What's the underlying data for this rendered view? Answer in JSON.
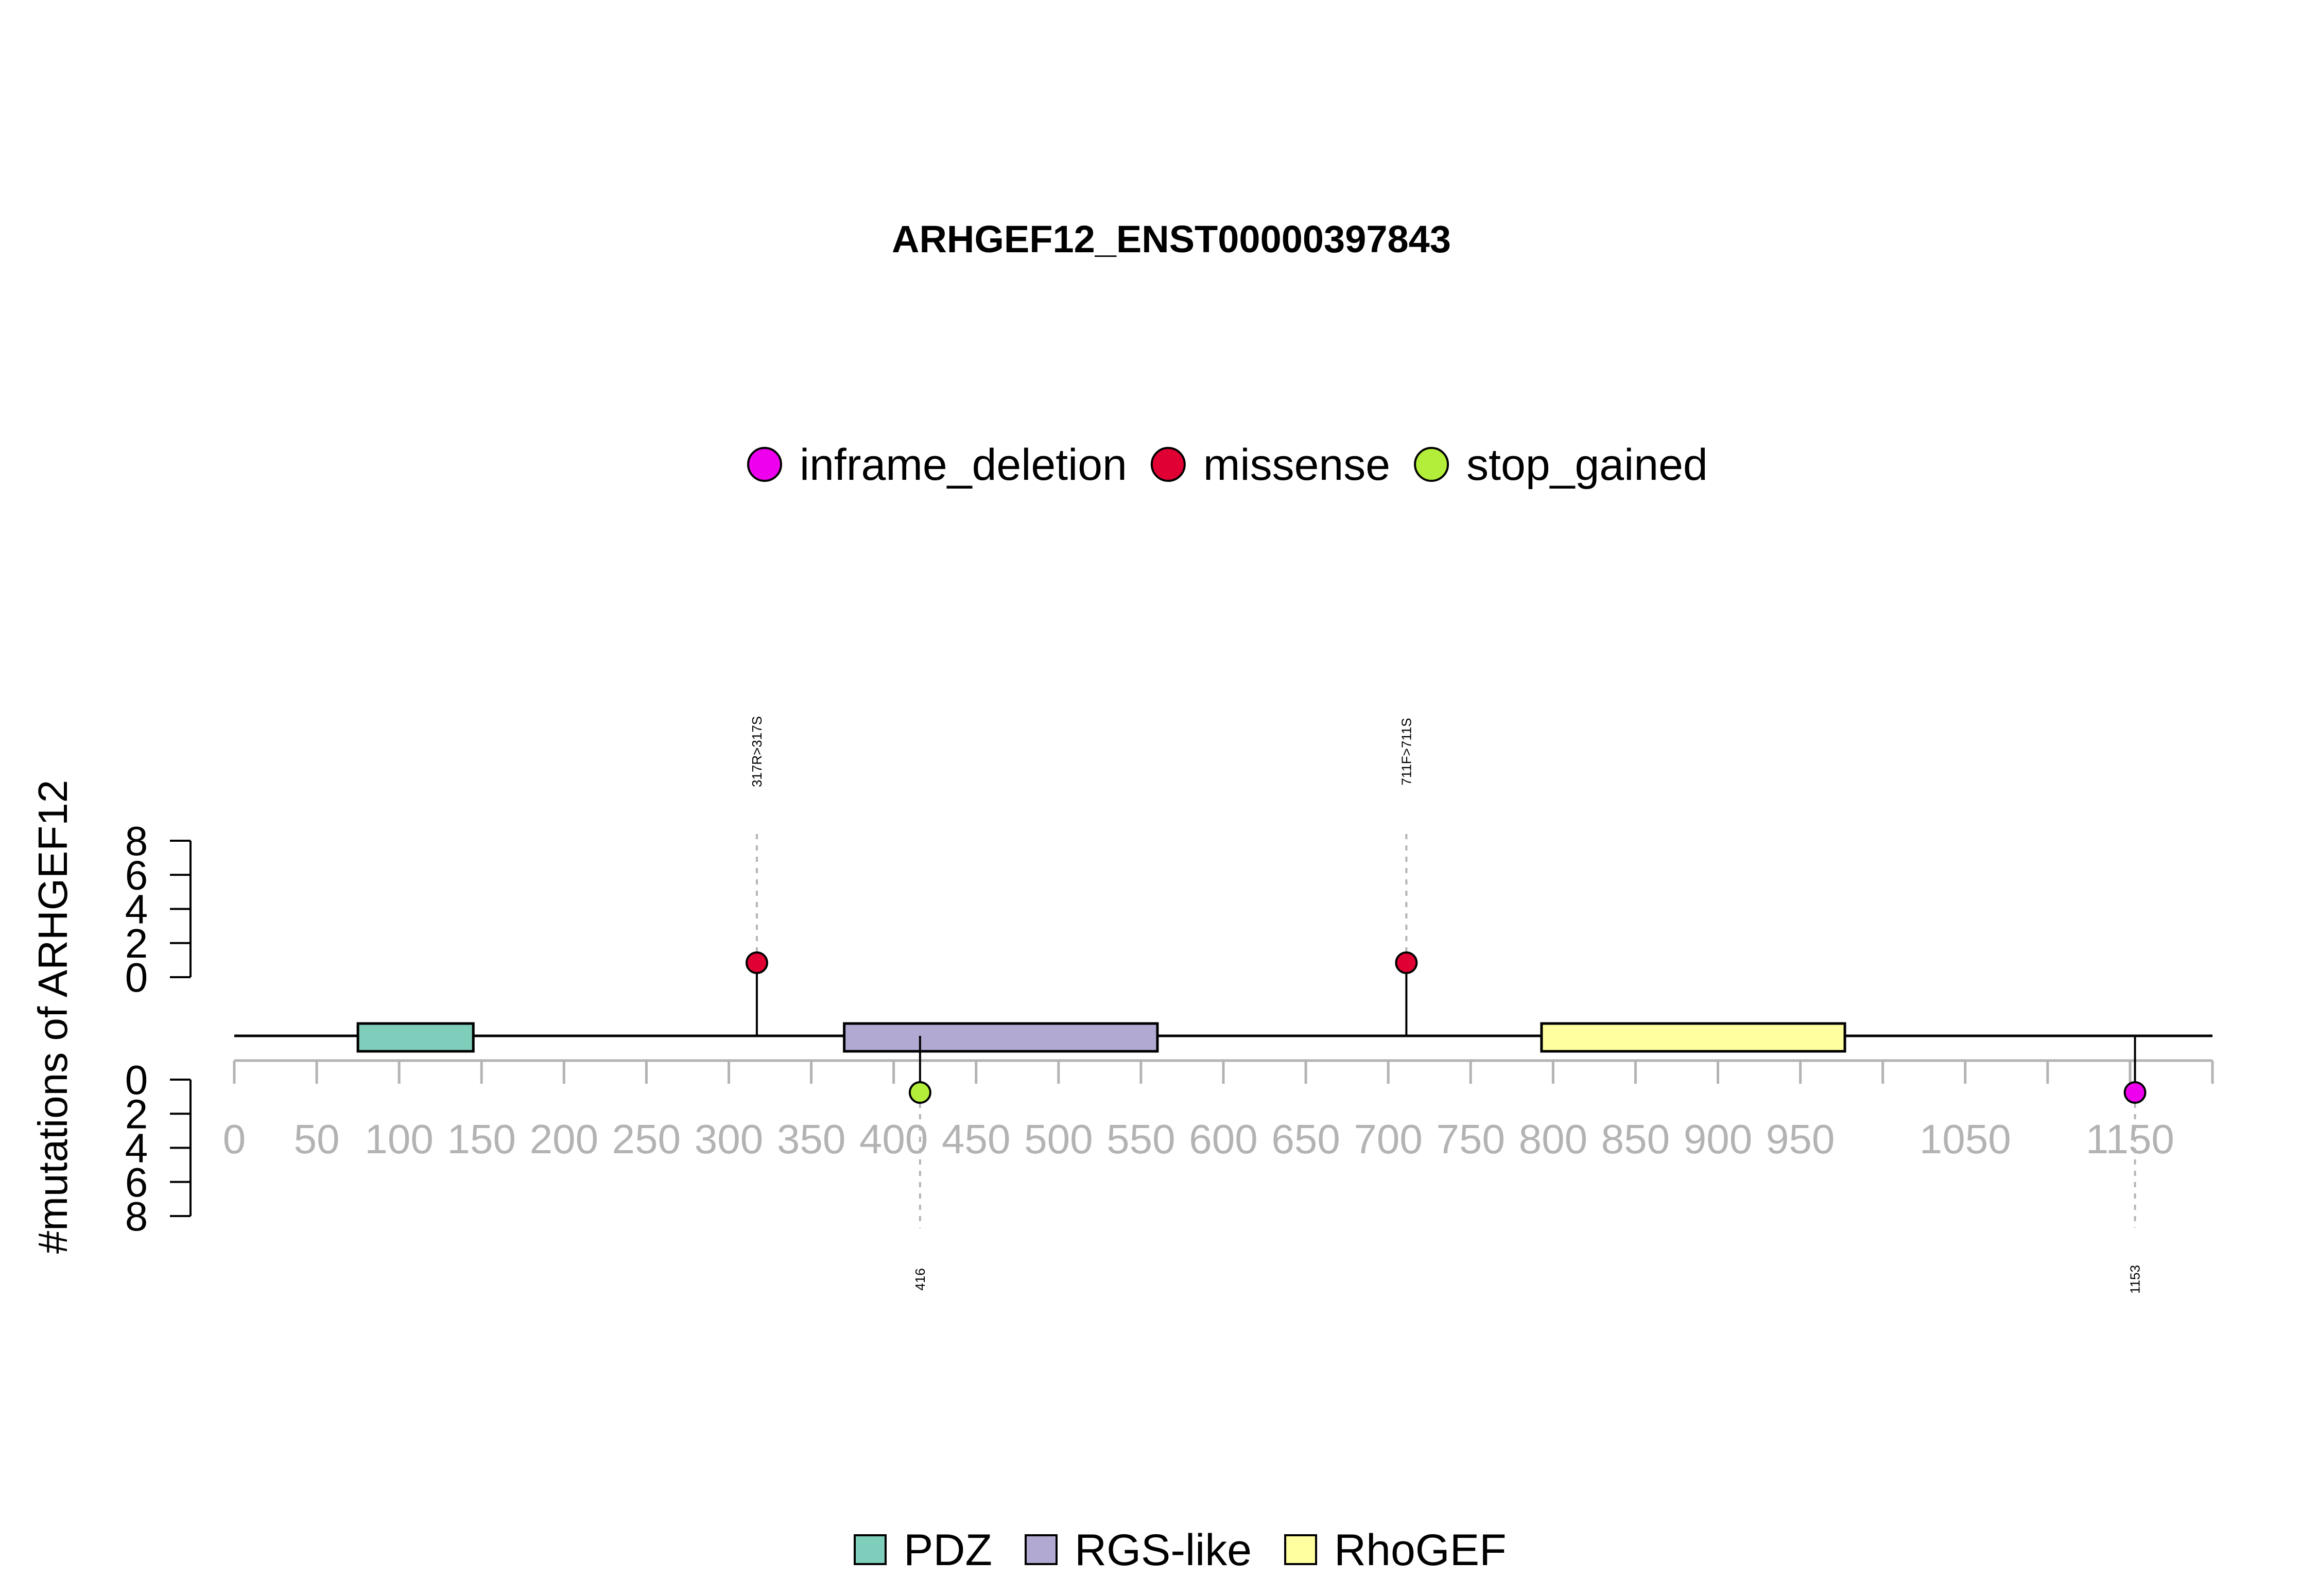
{
  "chart_data": {
    "type": "lollipop",
    "title": "ARHGEF12_ENST00000397843",
    "ylabel": "#mutations of ARHGEF12",
    "x_range": [
      0,
      1200
    ],
    "x_ticks": [
      0,
      50,
      100,
      150,
      200,
      250,
      300,
      350,
      400,
      450,
      500,
      550,
      600,
      650,
      700,
      750,
      800,
      850,
      900,
      950,
      1000,
      1050,
      1100,
      1150,
      1200
    ],
    "x_tick_labels": [
      "0",
      "50",
      "100",
      "150",
      "200",
      "250",
      "300",
      "350",
      "400",
      "450",
      "500",
      "550",
      "600",
      "650",
      "700",
      "750",
      "800",
      "850",
      "900",
      "950",
      "",
      "1050",
      "",
      "1150",
      ""
    ],
    "y_ticks_top": [
      "0",
      "2",
      "4",
      "6",
      "8"
    ],
    "y_ticks_bottom": [
      "0",
      "2",
      "4",
      "6",
      "8"
    ],
    "mutation_legend": [
      {
        "label": "inframe_deletion",
        "color": "#EE00EE"
      },
      {
        "label": "missense",
        "color": "#E00033"
      },
      {
        "label": "stop_gained",
        "color": "#B3EE3A"
      }
    ],
    "domain_legend": [
      {
        "label": "PDZ",
        "color": "#7FCDBB"
      },
      {
        "label": "RGS-like",
        "color": "#B1A9D1"
      },
      {
        "label": "RhoGEF",
        "color": "#FFFFA0"
      }
    ],
    "domains": [
      {
        "name": "PDZ",
        "start": 75,
        "end": 145,
        "color": "#7FCDBB"
      },
      {
        "name": "RGS-like",
        "start": 370,
        "end": 560,
        "color": "#B1A9D1"
      },
      {
        "name": "RhoGEF",
        "start": 793,
        "end": 977,
        "color": "#FFFFA0"
      }
    ],
    "mutations": [
      {
        "position": 317,
        "count": 1,
        "type": "missense",
        "color": "#E00033",
        "label": "317R>317S",
        "side": "top"
      },
      {
        "position": 711,
        "count": 1,
        "type": "missense",
        "color": "#E00033",
        "label": "711F>711S",
        "side": "top"
      },
      {
        "position": 416,
        "count": 1,
        "type": "stop_gained",
        "color": "#B3EE3A",
        "label": "416",
        "side": "bottom"
      },
      {
        "position": 1153,
        "count": 1,
        "type": "inframe_deletion",
        "color": "#EE00EE",
        "label": "1153",
        "side": "bottom"
      }
    ]
  }
}
